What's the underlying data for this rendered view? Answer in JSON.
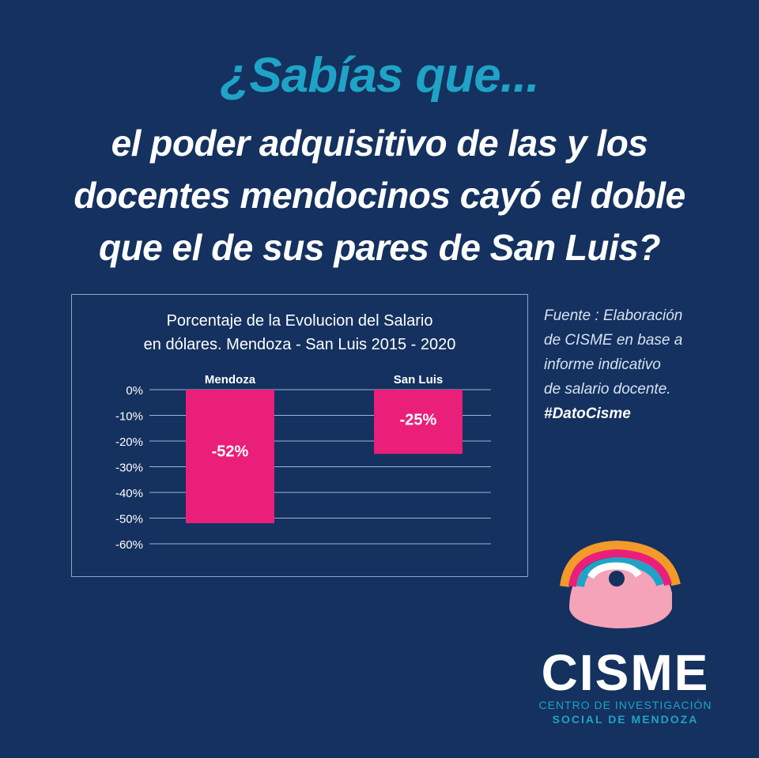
{
  "headline": {
    "question": "¿Sabías que...",
    "lines": [
      "el poder adquisitivo de las y los",
      "docentes mendocinos cayó el doble",
      "que el de sus pares de San Luis?"
    ]
  },
  "chart_data": {
    "type": "bar",
    "title_lines": [
      "Porcentaje de la Evolucion del Salario",
      "en dólares. Mendoza - San Luis 2015 - 2020"
    ],
    "categories": [
      "Mendoza",
      "San Luis"
    ],
    "values": [
      -52,
      -25
    ],
    "data_labels": [
      "-52%",
      "-25%"
    ],
    "ylim": [
      -60,
      0
    ],
    "y_ticks": [
      0,
      -10,
      -20,
      -30,
      -40,
      -50,
      -60
    ],
    "y_tick_labels": [
      "0%",
      "-10%",
      "-20%",
      "-30%",
      "-40%",
      "-50%",
      "-60%"
    ],
    "bar_color": "#ea1f79",
    "grid": true
  },
  "source": {
    "lines": [
      "Fuente : Elaboración",
      "de CISME en base a",
      "informe indicativo",
      "de salario docente."
    ],
    "hashtag": "#DatoCisme"
  },
  "brand": {
    "name": "CISME",
    "subtitle_1": "CENTRO DE INVESTIGACIÓN",
    "subtitle_2": "SOCIAL DE MENDOZA"
  },
  "colors": {
    "background": "#14315f",
    "accent": "#1fa3c6",
    "bar": "#ea1f79"
  }
}
